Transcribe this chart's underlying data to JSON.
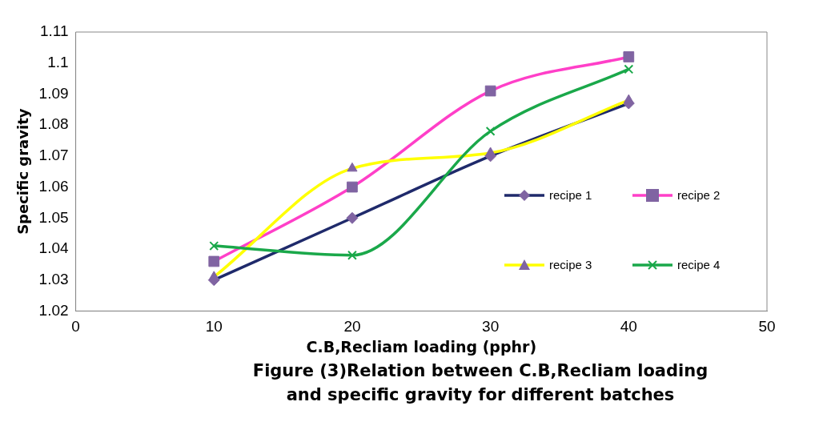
{
  "chart_data": {
    "type": "line",
    "title": "Figure (3)Relation between C.B,Recliam loading and specific gravity for different batches",
    "xlabel": "C.B,Recliam loading (pphr)",
    "ylabel": "Specific gravity",
    "x": [
      10,
      20,
      30,
      40
    ],
    "series": [
      {
        "name": "recipe 1",
        "color": "#1f2a6b",
        "marker": "diamond",
        "values": [
          1.03,
          1.05,
          1.07,
          1.087
        ]
      },
      {
        "name": "recipe 2",
        "color": "#ff3fc8",
        "marker": "square",
        "values": [
          1.036,
          1.06,
          1.091,
          1.102
        ]
      },
      {
        "name": "recipe 3",
        "color": "#ffff00",
        "marker": "triangle",
        "values": [
          1.031,
          1.066,
          1.071,
          1.088
        ]
      },
      {
        "name": "recipe 4",
        "color": "#1aa84a",
        "marker": "cross",
        "values": [
          1.041,
          1.038,
          1.078,
          1.098
        ]
      }
    ],
    "xlim": [
      0,
      50
    ],
    "xticks": [
      0,
      10,
      20,
      30,
      40,
      50
    ],
    "ylim": [
      1.02,
      1.11
    ],
    "yticks": [
      1.02,
      1.03,
      1.04,
      1.05,
      1.06,
      1.07,
      1.08,
      1.09,
      1.1,
      1.11
    ],
    "grid": false,
    "legend": "right"
  }
}
